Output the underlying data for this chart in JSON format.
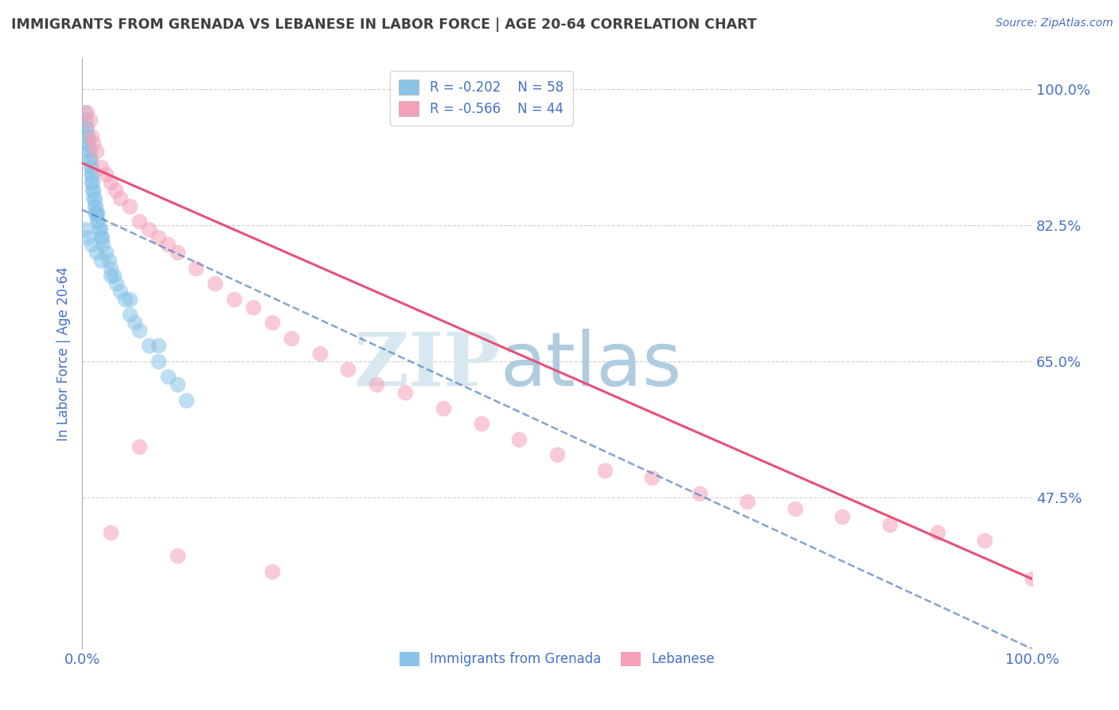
{
  "title": "IMMIGRANTS FROM GRENADA VS LEBANESE IN LABOR FORCE | AGE 20-64 CORRELATION CHART",
  "source_text": "Source: ZipAtlas.com",
  "ylabel": "In Labor Force | Age 20-64",
  "watermark_zip": "ZIP",
  "watermark_atlas": "atlas",
  "xlim": [
    0.0,
    1.0
  ],
  "ylim": [
    0.28,
    1.04
  ],
  "yticks": [
    0.475,
    0.65,
    0.825,
    1.0
  ],
  "ytick_labels": [
    "47.5%",
    "65.0%",
    "82.5%",
    "100.0%"
  ],
  "xtick_labels": [
    "0.0%",
    "100.0%"
  ],
  "legend_R_grenada": "R = -0.202",
  "legend_N_grenada": "N = 58",
  "legend_R_lebanese": "R = -0.566",
  "legend_N_lebanese": "N = 44",
  "grenada_color": "#89C4E8",
  "lebanese_color": "#F5A0B8",
  "grenada_line_color": "#4F7FBB",
  "lebanese_line_color": "#E8507A",
  "background_color": "#ffffff",
  "grid_color": "#d0d0d0",
  "title_color": "#404040",
  "axis_label_color": "#4472C4",
  "watermark_color_zip": "#d8e8f0",
  "watermark_color_atlas": "#b0cce0",
  "grenada_scatter_x": [
    0.002,
    0.003,
    0.004,
    0.005,
    0.005,
    0.006,
    0.006,
    0.007,
    0.007,
    0.008,
    0.008,
    0.009,
    0.009,
    0.01,
    0.01,
    0.01,
    0.01,
    0.011,
    0.011,
    0.012,
    0.012,
    0.013,
    0.013,
    0.014,
    0.014,
    0.015,
    0.015,
    0.016,
    0.016,
    0.017,
    0.018,
    0.019,
    0.02,
    0.021,
    0.022,
    0.025,
    0.028,
    0.03,
    0.033,
    0.036,
    0.04,
    0.045,
    0.05,
    0.055,
    0.06,
    0.07,
    0.08,
    0.09,
    0.1,
    0.11,
    0.003,
    0.006,
    0.01,
    0.015,
    0.02,
    0.03,
    0.05,
    0.08
  ],
  "grenada_scatter_y": [
    0.97,
    0.96,
    0.95,
    0.94,
    0.95,
    0.93,
    0.94,
    0.92,
    0.93,
    0.91,
    0.92,
    0.9,
    0.91,
    0.89,
    0.9,
    0.88,
    0.89,
    0.87,
    0.88,
    0.86,
    0.87,
    0.85,
    0.86,
    0.84,
    0.85,
    0.84,
    0.84,
    0.83,
    0.84,
    0.83,
    0.82,
    0.82,
    0.81,
    0.81,
    0.8,
    0.79,
    0.78,
    0.77,
    0.76,
    0.75,
    0.74,
    0.73,
    0.71,
    0.7,
    0.69,
    0.67,
    0.65,
    0.63,
    0.62,
    0.6,
    0.82,
    0.81,
    0.8,
    0.79,
    0.78,
    0.76,
    0.73,
    0.67
  ],
  "lebanese_scatter_x": [
    0.005,
    0.008,
    0.01,
    0.012,
    0.015,
    0.02,
    0.025,
    0.03,
    0.035,
    0.04,
    0.05,
    0.06,
    0.07,
    0.08,
    0.09,
    0.1,
    0.12,
    0.14,
    0.16,
    0.18,
    0.2,
    0.22,
    0.25,
    0.28,
    0.31,
    0.34,
    0.38,
    0.42,
    0.46,
    0.5,
    0.55,
    0.6,
    0.65,
    0.7,
    0.75,
    0.8,
    0.85,
    0.9,
    0.95,
    1.0,
    0.03,
    0.06,
    0.1,
    0.2
  ],
  "lebanese_scatter_y": [
    0.97,
    0.96,
    0.94,
    0.93,
    0.92,
    0.9,
    0.89,
    0.88,
    0.87,
    0.86,
    0.85,
    0.83,
    0.82,
    0.81,
    0.8,
    0.79,
    0.77,
    0.75,
    0.73,
    0.72,
    0.7,
    0.68,
    0.66,
    0.64,
    0.62,
    0.61,
    0.59,
    0.57,
    0.55,
    0.53,
    0.51,
    0.5,
    0.48,
    0.47,
    0.46,
    0.45,
    0.44,
    0.43,
    0.42,
    0.37,
    0.43,
    0.54,
    0.4,
    0.38
  ],
  "grenada_trend_x": [
    0.0,
    1.0
  ],
  "grenada_trend_y": [
    0.845,
    0.28
  ],
  "lebanese_trend_x": [
    0.0,
    1.0
  ],
  "lebanese_trend_y": [
    0.905,
    0.37
  ]
}
